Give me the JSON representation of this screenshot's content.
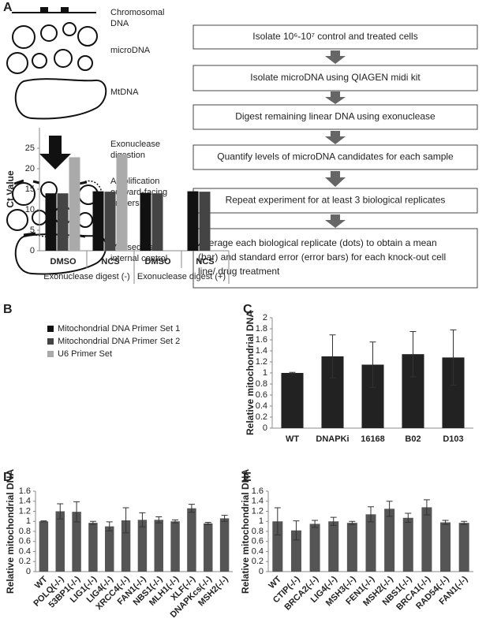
{
  "panel_a": {
    "label": "A",
    "left_labels": [
      [
        "Chromosomal",
        "DNA"
      ],
      [
        "microDNA"
      ],
      [
        "MtDNA"
      ],
      [
        "Exonuclease",
        "digestion"
      ],
      [
        "Amplification",
        "outward-facing",
        "primers"
      ],
      [
        "Mt used as",
        "internal control"
      ]
    ],
    "steps": [
      [
        "Isolate 10⁶-10⁷ control and treated cells"
      ],
      [
        "Isolate microDNA using QIAGEN midi kit"
      ],
      [
        "Digest remaining linear DNA using exonuclease"
      ],
      [
        "Quantify levels of microDNA candidates for each sample"
      ],
      [
        "Repeat experiment for at least 3 biological replicates"
      ],
      [
        "Average each biological replicate (dots) to obtain a mean",
        "(bar) and standard error (error bars) for each knock-out cell",
        "line/ drug treatment"
      ]
    ]
  },
  "chart_data": [
    {
      "type": "bar",
      "panel": "B",
      "y_label": "Ct Value",
      "categories": [
        "DMSO",
        "NCS",
        "DMSO",
        "NCS"
      ],
      "group_labels": [
        "Exonuclease digest (-)",
        "Exonuclease digest (+)"
      ],
      "series": [
        {
          "name": "Mitochondrial DNA Primer Set 1",
          "color": "#111111",
          "values": [
            14,
            14.5,
            14.1,
            14.5
          ]
        },
        {
          "name": "Mitochondrial DNA Primer Set 2",
          "color": "#444444",
          "values": [
            14,
            14.4,
            14,
            14.4
          ]
        },
        {
          "name": "U6 Primer Set",
          "color": "#aaaaaa",
          "values": [
            22.8,
            23.5,
            0,
            0
          ]
        }
      ],
      "ylim": [
        0,
        30
      ],
      "yticks": [
        0,
        5,
        10,
        15,
        20,
        25
      ],
      "legend": "upper left",
      "grid": false
    },
    {
      "type": "bar",
      "panel": "C",
      "y_label": "Relative mitochondrial DNA",
      "categories": [
        "WT",
        "DNAPKi",
        "16168",
        "B02",
        "D103"
      ],
      "values": [
        1,
        1.3,
        1.15,
        1.34,
        1.28
      ],
      "errors": [
        0.01,
        0.39,
        0.41,
        0.41,
        0.5
      ],
      "color": "#222222",
      "ylim": [
        0,
        2
      ],
      "yticks": [
        0,
        0.2,
        0.4,
        0.6,
        0.8,
        1,
        1.2,
        1.4,
        1.6,
        1.8,
        2
      ],
      "grid": false
    },
    {
      "type": "bar",
      "panel": "D",
      "y_label": "Relative mitochondrial DNA",
      "categories": [
        "WT",
        "POLQ(-/-)",
        "53BP1(-/-)",
        "LIG1(-/-)",
        "LIG4(-/-)",
        "XRCC4(-/-)",
        "FAN1(-/-)",
        "NBS1(-/-)",
        "MLH1(-/-)",
        "XLF(-/-)",
        "DNAPKcs(-/-)",
        "MSH2(-/-)"
      ],
      "values": [
        1,
        1.2,
        1.19,
        0.97,
        0.9,
        1.02,
        1.03,
        1.03,
        1.0,
        1.26,
        0.96,
        1.06
      ],
      "errors": [
        0.01,
        0.15,
        0.2,
        0.03,
        0.09,
        0.25,
        0.14,
        0.06,
        0.03,
        0.08,
        0.02,
        0.06
      ],
      "color": "#555555",
      "ylim": [
        0,
        1.6
      ],
      "yticks": [
        0,
        0.2,
        0.4,
        0.6,
        0.8,
        1,
        1.2,
        1.4,
        1.6
      ],
      "x_label_rotation": 45,
      "grid": false
    },
    {
      "type": "bar",
      "panel": "E",
      "y_label": "Relative mitochondrial DNA",
      "categories": [
        "WT",
        "CTIP(-/-)",
        "BRCA2(-/-)",
        "LIG4(-/-)",
        "MSH3(-/-)",
        "FEN1(-/-)",
        "MSH2(-/-)",
        "NBS1(-/-)",
        "BRCA1(-/-)",
        "RAD54(-/-)",
        "FAN1(-/-)"
      ],
      "values": [
        1,
        0.82,
        0.95,
        1.0,
        0.97,
        1.14,
        1.25,
        1.07,
        1.28,
        0.98,
        0.97
      ],
      "errors": [
        0.27,
        0.19,
        0.07,
        0.08,
        0.03,
        0.15,
        0.15,
        0.09,
        0.15,
        0.04,
        0.03
      ],
      "color": "#555555",
      "ylim": [
        0,
        1.6
      ],
      "yticks": [
        0,
        0.2,
        0.4,
        0.6,
        0.8,
        1,
        1.2,
        1.4,
        1.6
      ],
      "x_label_rotation": 45,
      "grid": false
    }
  ]
}
